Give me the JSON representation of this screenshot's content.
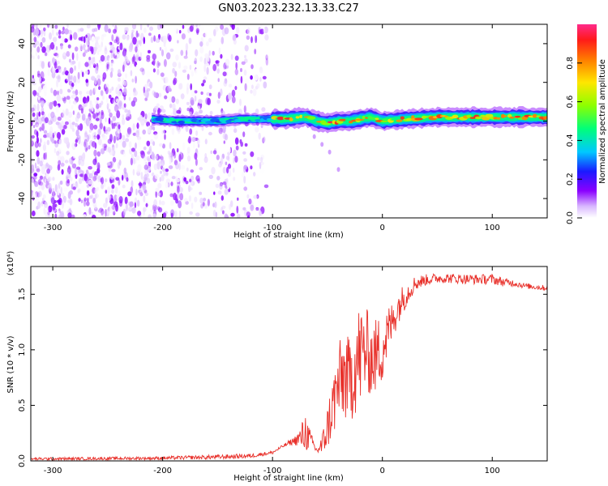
{
  "title": "GN03.2023.232.13.33.C27",
  "chart_data": [
    {
      "type": "heatmap",
      "xlabel": "Height of straight line (km)",
      "ylabel": "Frequency (Hz)",
      "xlim": [
        -320,
        150
      ],
      "ylim": [
        -50,
        50
      ],
      "xticks": [
        -300,
        -200,
        -100,
        0,
        100
      ],
      "yticks": [
        -40,
        -20,
        0,
        20,
        40
      ],
      "colorbar": {
        "label": "Normalized spectral amplitude",
        "range": [
          0.0,
          1.0
        ],
        "ticks": [
          0.0,
          0.2,
          0.4,
          0.6,
          0.8
        ],
        "tick_labels": [
          "0.0",
          "0.2",
          "0.4",
          "0.6",
          "0.8"
        ],
        "colors": [
          "#ffffff",
          "#d9b8ff",
          "#8a00ff",
          "#1a1aff",
          "#00c8ff",
          "#00ff7a",
          "#8cff00",
          "#ffe600",
          "#ff7a00",
          "#ff1a1a",
          "#ff2a8a"
        ]
      },
      "features": [
        {
          "name": "noise",
          "x_range": [
            -320,
            -105
          ],
          "y_range": [
            -50,
            50
          ],
          "amplitude_range": [
            0.0,
            0.15
          ]
        },
        {
          "name": "signal band",
          "x_range": [
            -210,
            150
          ],
          "center_y": [
            [
              -210,
              1
            ],
            [
              -190,
              0
            ],
            [
              -170,
              0
            ],
            [
              -150,
              0
            ],
            [
              -130,
              1
            ],
            [
              -110,
              1
            ],
            [
              -90,
              1
            ],
            [
              -70,
              2
            ],
            [
              -60,
              0
            ],
            [
              -50,
              -1
            ],
            [
              -40,
              0
            ],
            [
              -30,
              0
            ],
            [
              -20,
              1
            ],
            [
              -10,
              2
            ],
            [
              0,
              0
            ],
            [
              20,
              1
            ],
            [
              50,
              2
            ],
            [
              80,
              2
            ],
            [
              100,
              2
            ],
            [
              130,
              2
            ],
            [
              150,
              2
            ]
          ],
          "peak_amplitude": 0.9
        },
        {
          "name": "drift tail",
          "points": [
            [
              -62,
              -8
            ],
            [
              -55,
              -12
            ],
            [
              -48,
              -16
            ],
            [
              -40,
              -25
            ]
          ]
        }
      ]
    },
    {
      "type": "line",
      "xlabel": "Height of straight line (km)",
      "ylabel": "SNR (10 * v/v)",
      "y_multiplier": "(x10⁴)",
      "xlim": [
        -320,
        150
      ],
      "ylim": [
        0,
        17500
      ],
      "xticks": [
        -300,
        -200,
        -100,
        0,
        100
      ],
      "yticks": [
        0,
        5000,
        10000,
        15000
      ],
      "ytick_labels": [
        "0.0",
        "0.5",
        "1.0",
        "1.5"
      ],
      "color": "#e8302a",
      "envelope": {
        "x": [
          -320,
          -250,
          -200,
          -150,
          -120,
          -100,
          -90,
          -80,
          -75,
          -70,
          -65,
          -60,
          -55,
          -50,
          -45,
          -40,
          -35,
          -30,
          -25,
          -20,
          -15,
          -10,
          -5,
          0,
          5,
          10,
          15,
          20,
          25,
          30,
          40,
          50,
          60,
          80,
          100,
          110,
          120,
          130,
          140,
          150
        ],
        "y_low": [
          50,
          80,
          100,
          150,
          250,
          600,
          1200,
          1500,
          1000,
          700,
          1200,
          600,
          300,
          1000,
          2000,
          3000,
          3500,
          3200,
          4000,
          4500,
          6000,
          5800,
          6000,
          7000,
          9000,
          11000,
          12500,
          13500,
          14500,
          15300,
          15800,
          16000,
          16000,
          15900,
          15900,
          15700,
          15700,
          15500,
          15400,
          15300
        ],
        "y_high": [
          300,
          350,
          400,
          550,
          650,
          900,
          1500,
          2200,
          3000,
          4500,
          2500,
          1300,
          2400,
          5000,
          8000,
          10500,
          12000,
          11000,
          13500,
          14500,
          14000,
          12500,
          13000,
          13500,
          14000,
          14500,
          15500,
          16000,
          16300,
          16700,
          16800,
          16900,
          16900,
          16800,
          16800,
          16500,
          16300,
          16000,
          15900,
          15800
        ]
      }
    }
  ]
}
